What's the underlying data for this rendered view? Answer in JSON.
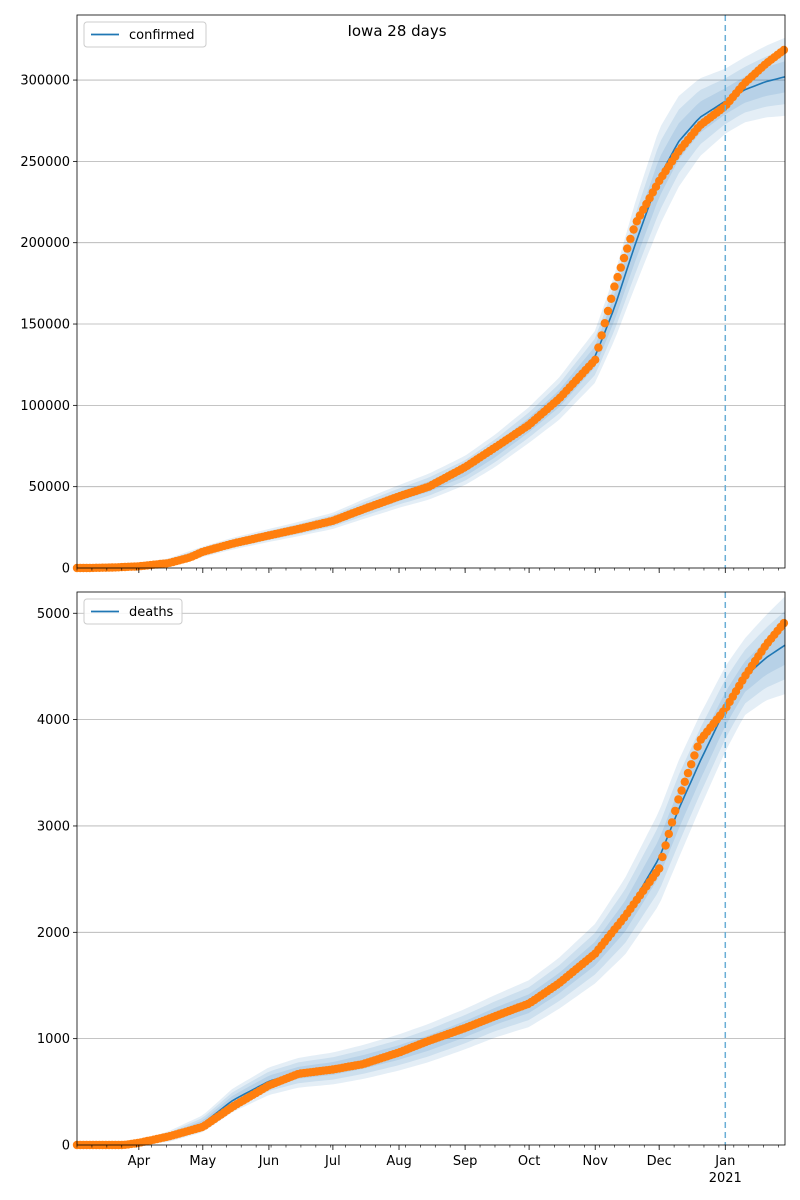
{
  "figure_title": "Iowa 28 days",
  "colors": {
    "model_line": "#1f77b4",
    "band_fill": "#1f77b4",
    "observed_points": "#ff7f0e",
    "forecast_marker": "#6aaed6",
    "grid": "#b0b0b0"
  },
  "x_axis": {
    "tick_labels": [
      "Apr",
      "May",
      "Jun",
      "Jul",
      "Aug",
      "Sep",
      "Oct",
      "Nov",
      "Dec",
      "Jan"
    ],
    "tick_dates": [
      "2020-04-01",
      "2020-05-01",
      "2020-06-01",
      "2020-07-01",
      "2020-08-01",
      "2020-09-01",
      "2020-10-01",
      "2020-11-01",
      "2020-12-01",
      "2021-01-01"
    ],
    "year_label": "2021",
    "range": [
      "2020-03-03",
      "2021-01-29"
    ],
    "forecast_start": "2021-01-01"
  },
  "chart_data": [
    {
      "type": "line",
      "legend": "confirmed",
      "legend_position": "upper-left",
      "grid": "horizontal",
      "ylim": [
        0,
        340000
      ],
      "yticks": [
        0,
        50000,
        100000,
        150000,
        200000,
        250000,
        300000
      ],
      "model": {
        "x": [
          "2020-03-03",
          "2020-03-20",
          "2020-04-01",
          "2020-04-15",
          "2020-05-01",
          "2020-05-15",
          "2020-06-01",
          "2020-06-15",
          "2020-07-01",
          "2020-07-15",
          "2020-08-01",
          "2020-08-15",
          "2020-09-01",
          "2020-09-15",
          "2020-10-01",
          "2020-10-15",
          "2020-11-01",
          "2020-11-10",
          "2020-11-20",
          "2020-12-01",
          "2020-12-10",
          "2020-12-20",
          "2021-01-01",
          "2021-01-10",
          "2021-01-20",
          "2021-01-29"
        ],
        "y": [
          0,
          300,
          1000,
          3500,
          10000,
          15000,
          20000,
          24000,
          29000,
          36000,
          44000,
          50000,
          60000,
          72000,
          88000,
          104000,
          130000,
          160000,
          200000,
          240000,
          262000,
          277000,
          287000,
          294000,
          299000,
          302000
        ],
        "band_sd": [
          0,
          200,
          800,
          1200,
          1600,
          1800,
          2000,
          2200,
          2500,
          3000,
          3500,
          4000,
          4500,
          5000,
          5500,
          6500,
          8000,
          10000,
          13000,
          15000,
          14000,
          12000,
          10000,
          10000,
          11000,
          12000
        ]
      },
      "observed": {
        "x": [
          "2020-03-08",
          "2020-03-20",
          "2020-04-01",
          "2020-04-15",
          "2020-04-25",
          "2020-05-01",
          "2020-05-15",
          "2020-06-01",
          "2020-06-15",
          "2020-07-01",
          "2020-07-15",
          "2020-08-01",
          "2020-08-15",
          "2020-09-01",
          "2020-09-15",
          "2020-10-01",
          "2020-10-15",
          "2020-11-01",
          "2020-11-10",
          "2020-11-20",
          "2020-12-01",
          "2020-12-10",
          "2020-12-20",
          "2021-01-01",
          "2021-01-10",
          "2021-01-20",
          "2021-01-29"
        ],
        "y": [
          0,
          300,
          1000,
          3000,
          6500,
          10000,
          15000,
          20000,
          24000,
          29000,
          36000,
          44000,
          50000,
          62000,
          74000,
          88000,
          104000,
          128000,
          173000,
          212000,
          238000,
          256000,
          272000,
          284000,
          298000,
          310000,
          319000
        ]
      }
    },
    {
      "type": "line",
      "legend": "deaths",
      "legend_position": "upper-left",
      "grid": "horizontal",
      "ylim": [
        0,
        5200
      ],
      "yticks": [
        0,
        1000,
        2000,
        3000,
        4000,
        5000
      ],
      "model": {
        "x": [
          "2020-03-03",
          "2020-03-20",
          "2020-04-01",
          "2020-04-15",
          "2020-05-01",
          "2020-05-15",
          "2020-06-01",
          "2020-06-15",
          "2020-07-01",
          "2020-07-15",
          "2020-08-01",
          "2020-08-15",
          "2020-09-01",
          "2020-09-15",
          "2020-10-01",
          "2020-10-15",
          "2020-11-01",
          "2020-11-15",
          "2020-12-01",
          "2020-12-10",
          "2020-12-20",
          "2021-01-01",
          "2021-01-10",
          "2021-01-20",
          "2021-01-29"
        ],
        "y": [
          0,
          0,
          15,
          80,
          200,
          420,
          600,
          680,
          720,
          780,
          870,
          960,
          1090,
          1210,
          1330,
          1520,
          1800,
          2150,
          2700,
          3150,
          3600,
          4100,
          4400,
          4580,
          4700
        ],
        "band_sd": [
          0,
          0,
          10,
          25,
          40,
          55,
          65,
          70,
          75,
          80,
          85,
          90,
          95,
          100,
          110,
          120,
          140,
          180,
          220,
          230,
          220,
          200,
          180,
          200,
          230
        ]
      },
      "observed": {
        "x": [
          "2020-03-08",
          "2020-03-25",
          "2020-04-01",
          "2020-04-15",
          "2020-05-01",
          "2020-05-15",
          "2020-06-01",
          "2020-06-15",
          "2020-07-01",
          "2020-07-15",
          "2020-08-01",
          "2020-08-15",
          "2020-09-01",
          "2020-09-15",
          "2020-10-01",
          "2020-10-15",
          "2020-11-01",
          "2020-11-15",
          "2020-12-01",
          "2020-12-10",
          "2020-12-20",
          "2021-01-01",
          "2021-01-10",
          "2021-01-20",
          "2021-01-29"
        ],
        "y": [
          0,
          0,
          20,
          80,
          170,
          360,
          560,
          670,
          710,
          760,
          870,
          980,
          1100,
          1210,
          1330,
          1520,
          1800,
          2150,
          2600,
          3250,
          3800,
          4100,
          4400,
          4700,
          4920
        ]
      }
    }
  ]
}
